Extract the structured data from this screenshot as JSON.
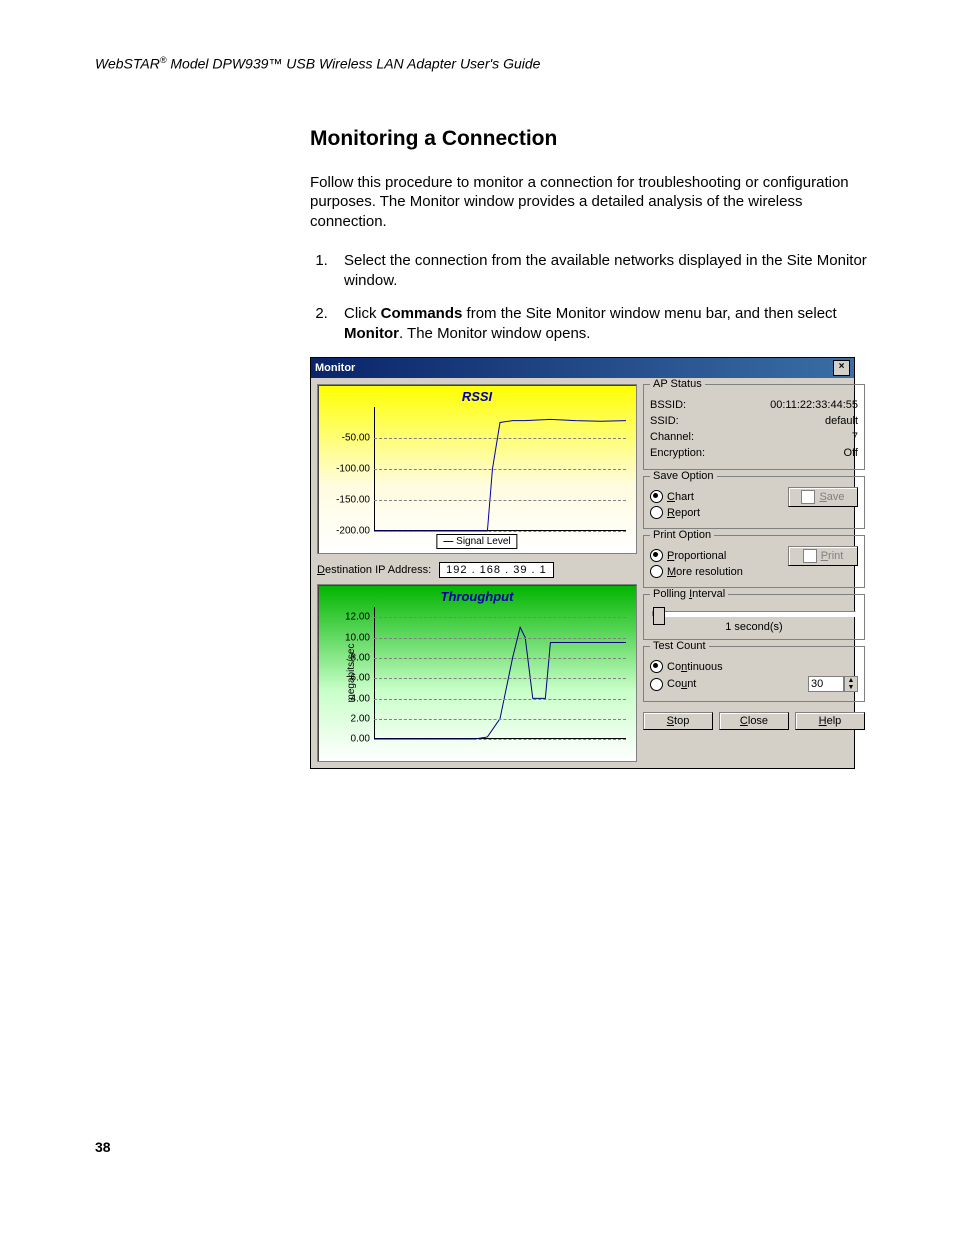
{
  "header": {
    "brand": "WebSTAR",
    "reg": "®",
    "model": " Model DPW939™ USB Wireless LAN Adapter User's Guide"
  },
  "section_title": "Monitoring a Connection",
  "intro": "Follow this procedure to monitor a connection for troubleshooting or configuration purposes. The Monitor window provides a detailed analysis of the wireless connection.",
  "steps": {
    "s1": "Select the connection from the available networks displayed in the Site Monitor window.",
    "s2a": "Click ",
    "s2b": "Commands",
    "s2c": " from the Site Monitor window menu bar, and then select ",
    "s2d": "Monitor",
    "s2e": ". The Monitor window opens."
  },
  "window": {
    "title": "Monitor",
    "close": "×",
    "rssi": {
      "title": "RSSI",
      "legend": "Signal Level",
      "yticks": [
        "-50.00",
        "-100.00",
        "-150.00",
        "-200.00"
      ],
      "ylim": [
        -200,
        0
      ],
      "line_color": "#0000aa",
      "grid_color": "#808080",
      "data_x": [
        0,
        0.05,
        0.1,
        0.15,
        0.2,
        0.25,
        0.3,
        0.35,
        0.4,
        0.45,
        0.47,
        0.5,
        0.55,
        0.6,
        0.7,
        0.8,
        0.9,
        1.0
      ],
      "data_y": [
        -200,
        -200,
        -200,
        -200,
        -200,
        -200,
        -200,
        -200,
        -200,
        -200,
        -100,
        -25,
        -22,
        -22,
        -20,
        -22,
        -23,
        -22
      ]
    },
    "ip": {
      "label_pre": "D",
      "label_rest": "estination IP Address:",
      "value": "192 . 168 .  39  .   1"
    },
    "throughput": {
      "title": "Throughput",
      "axis": "megabits/sec",
      "yticks": [
        "12.00",
        "10.00",
        "8.00",
        "6.00",
        "4.00",
        "2.00",
        "0.00"
      ],
      "ylim": [
        0,
        13
      ],
      "line_color": "#000080",
      "data_x": [
        0,
        0.1,
        0.2,
        0.3,
        0.4,
        0.45,
        0.5,
        0.55,
        0.58,
        0.6,
        0.63,
        0.68,
        0.7,
        0.72,
        0.8,
        0.9,
        1.0
      ],
      "data_y": [
        0,
        0,
        0,
        0,
        0,
        0.2,
        2,
        8,
        11,
        10,
        4,
        4,
        9.5,
        9.5,
        9.5,
        9.5,
        9.5
      ]
    },
    "ap_status": {
      "legend": "AP Status",
      "rows": [
        {
          "k": "BSSID:",
          "v": "00:11:22:33:44:55"
        },
        {
          "k": "SSID:",
          "v": "default"
        },
        {
          "k": "Channel:",
          "v": "7"
        },
        {
          "k": "Encryption:",
          "v": "Off"
        }
      ]
    },
    "save": {
      "legend": "Save Option",
      "opt1_u": "C",
      "opt1": "hart",
      "opt2_u": "R",
      "opt2": "eport",
      "btn_u": "S",
      "btn": "ave"
    },
    "print": {
      "legend": "Print Option",
      "opt1_u": "P",
      "opt1": "roportional",
      "opt2_u": "M",
      "opt2": "ore resolution",
      "btn_u": "P",
      "btn": "rint"
    },
    "poll": {
      "legend_pre": "Polling ",
      "legend_u": "I",
      "legend_post": "nterval",
      "value": "1 second(s)"
    },
    "test": {
      "legend": "Test Count",
      "opt1": "Co",
      "opt1_u": "n",
      "opt1_post": "tinuous",
      "opt2": "Co",
      "opt2_u": "u",
      "opt2_post": "nt",
      "count_value": "30"
    },
    "buttons": {
      "stop_u": "S",
      "stop": "top",
      "close_u": "C",
      "close": "lose",
      "help_u": "H",
      "help": "elp"
    }
  },
  "page_number": "38"
}
